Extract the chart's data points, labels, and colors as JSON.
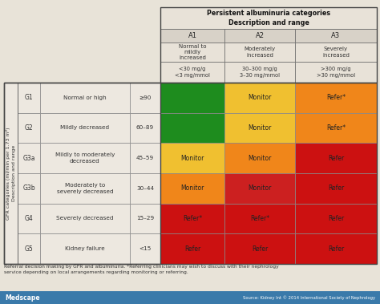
{
  "albuminuria_header": "Persistent albuminuria categories\nDescription and range",
  "gfr_header": "GFR categories (ml/min per 1.73 m²)\nDescription and range",
  "alb_categories": [
    "A1",
    "A2",
    "A3"
  ],
  "alb_descriptions": [
    "Normal to\nmildly\nincreased",
    "Moderately\nincreased",
    "Severely\nincreased"
  ],
  "alb_ranges": [
    "<30 mg/g\n<3 mg/mmol",
    "30–300 mg/g\n3–30 mg/mmol",
    ">300 mg/g\n>30 mg/mmol"
  ],
  "gfr_rows": [
    {
      "cat": "G1",
      "desc": "Normal or high",
      "range": "≥90",
      "cells": [
        "",
        "Monitor",
        "Refer*"
      ]
    },
    {
      "cat": "G2",
      "desc": "Mildly decreased",
      "range": "60–89",
      "cells": [
        "",
        "Monitor",
        "Refer*"
      ]
    },
    {
      "cat": "G3a",
      "desc": "Mildly to moderately\ndecreased",
      "range": "45–59",
      "cells": [
        "Monitor",
        "Monitor",
        "Refer"
      ]
    },
    {
      "cat": "G3b",
      "desc": "Moderately to\nseverely decreased",
      "range": "30–44",
      "cells": [
        "Monitor",
        "Monitor",
        "Refer"
      ]
    },
    {
      "cat": "G4",
      "desc": "Severely decreased",
      "range": "15–29",
      "cells": [
        "Refer*",
        "Refer*",
        "Refer"
      ]
    },
    {
      "cat": "G5",
      "desc": "Kidney failure",
      "range": "<15",
      "cells": [
        "Refer",
        "Refer",
        "Refer"
      ]
    }
  ],
  "cell_colors": [
    [
      "#1e8c1e",
      "#f0c030",
      "#f0861a"
    ],
    [
      "#1e8c1e",
      "#f0c030",
      "#f0861a"
    ],
    [
      "#f0c030",
      "#f0861a",
      "#cc1111"
    ],
    [
      "#f0861a",
      "#cc2020",
      "#cc1111"
    ],
    [
      "#cc1111",
      "#cc1111",
      "#cc1111"
    ],
    [
      "#cc1111",
      "#cc1111",
      "#cc1111"
    ]
  ],
  "header_bg": "#e8e2d8",
  "row_bg": "#ede8e0",
  "cat_row_bg": "#d8d2c8",
  "footer_text": "Referral decision making by GFR and albuminuria. *Referring clinicians may wish to discuss with their nephrology\nservice depending on local arrangements regarding monitoring or referring.",
  "source_text": "Source: Kidney Int © 2014 International Society of Nephrology",
  "medscape_text": "Medscape",
  "bottom_bar_color": "#3a7aaa",
  "bg_color": "#e8e3d8"
}
